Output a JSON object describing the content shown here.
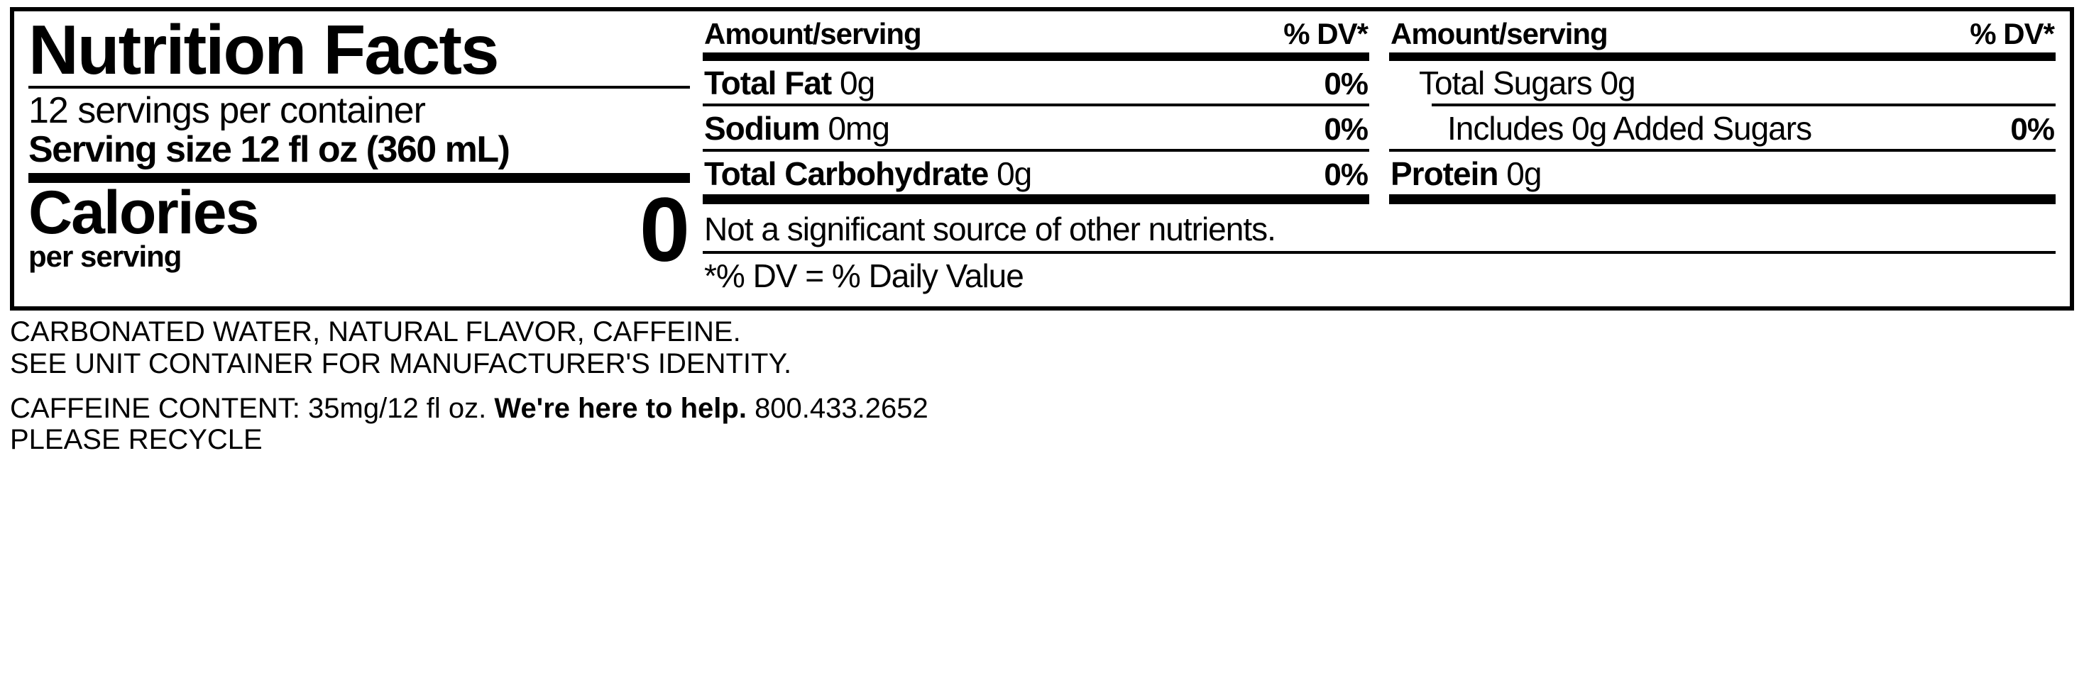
{
  "colors": {
    "fg": "#000000",
    "bg": "#ffffff"
  },
  "header": {
    "title": "Nutrition Facts",
    "servings_per_container": "12 servings per container",
    "serving_size": "Serving size 12 fl oz (360 mL)",
    "calories_label": "Calories",
    "calories_sub": "per serving",
    "calories_value": "0"
  },
  "col_headers": {
    "amount": "Amount/serving",
    "dv": "% DV*"
  },
  "col1": {
    "rows": [
      {
        "name_bold": "Total Fat",
        "name_rest": " 0g",
        "dv": "0%"
      },
      {
        "name_bold": "Sodium",
        "name_rest": " 0mg",
        "dv": "0%"
      },
      {
        "name_bold": "Total Carbohydrate",
        "name_rest": " 0g",
        "dv": "0%"
      }
    ]
  },
  "col2": {
    "rows": [
      {
        "indent": 1,
        "name_bold": "",
        "name_rest": "Total Sugars 0g",
        "dv": ""
      },
      {
        "indent": 2,
        "name_bold": "",
        "name_rest": "Includes 0g Added Sugars",
        "dv": "0%"
      },
      {
        "indent": 0,
        "name_bold": "Protein",
        "name_rest": " 0g",
        "dv": ""
      }
    ]
  },
  "footnotes": {
    "line1": "Not a significant source of other nutrients.",
    "line2": "*% DV = % Daily Value"
  },
  "below": {
    "ingredients": "CARBONATED WATER, NATURAL FLAVOR, CAFFEINE.",
    "mfg": "SEE UNIT CONTAINER FOR MANUFACTURER'S IDENTITY.",
    "caffeine": "CAFFEINE CONTENT: 35mg/12 fl oz.",
    "help_bold": "We're here to help.",
    "phone": "800.433.2652",
    "recycle": "PLEASE RECYCLE"
  }
}
